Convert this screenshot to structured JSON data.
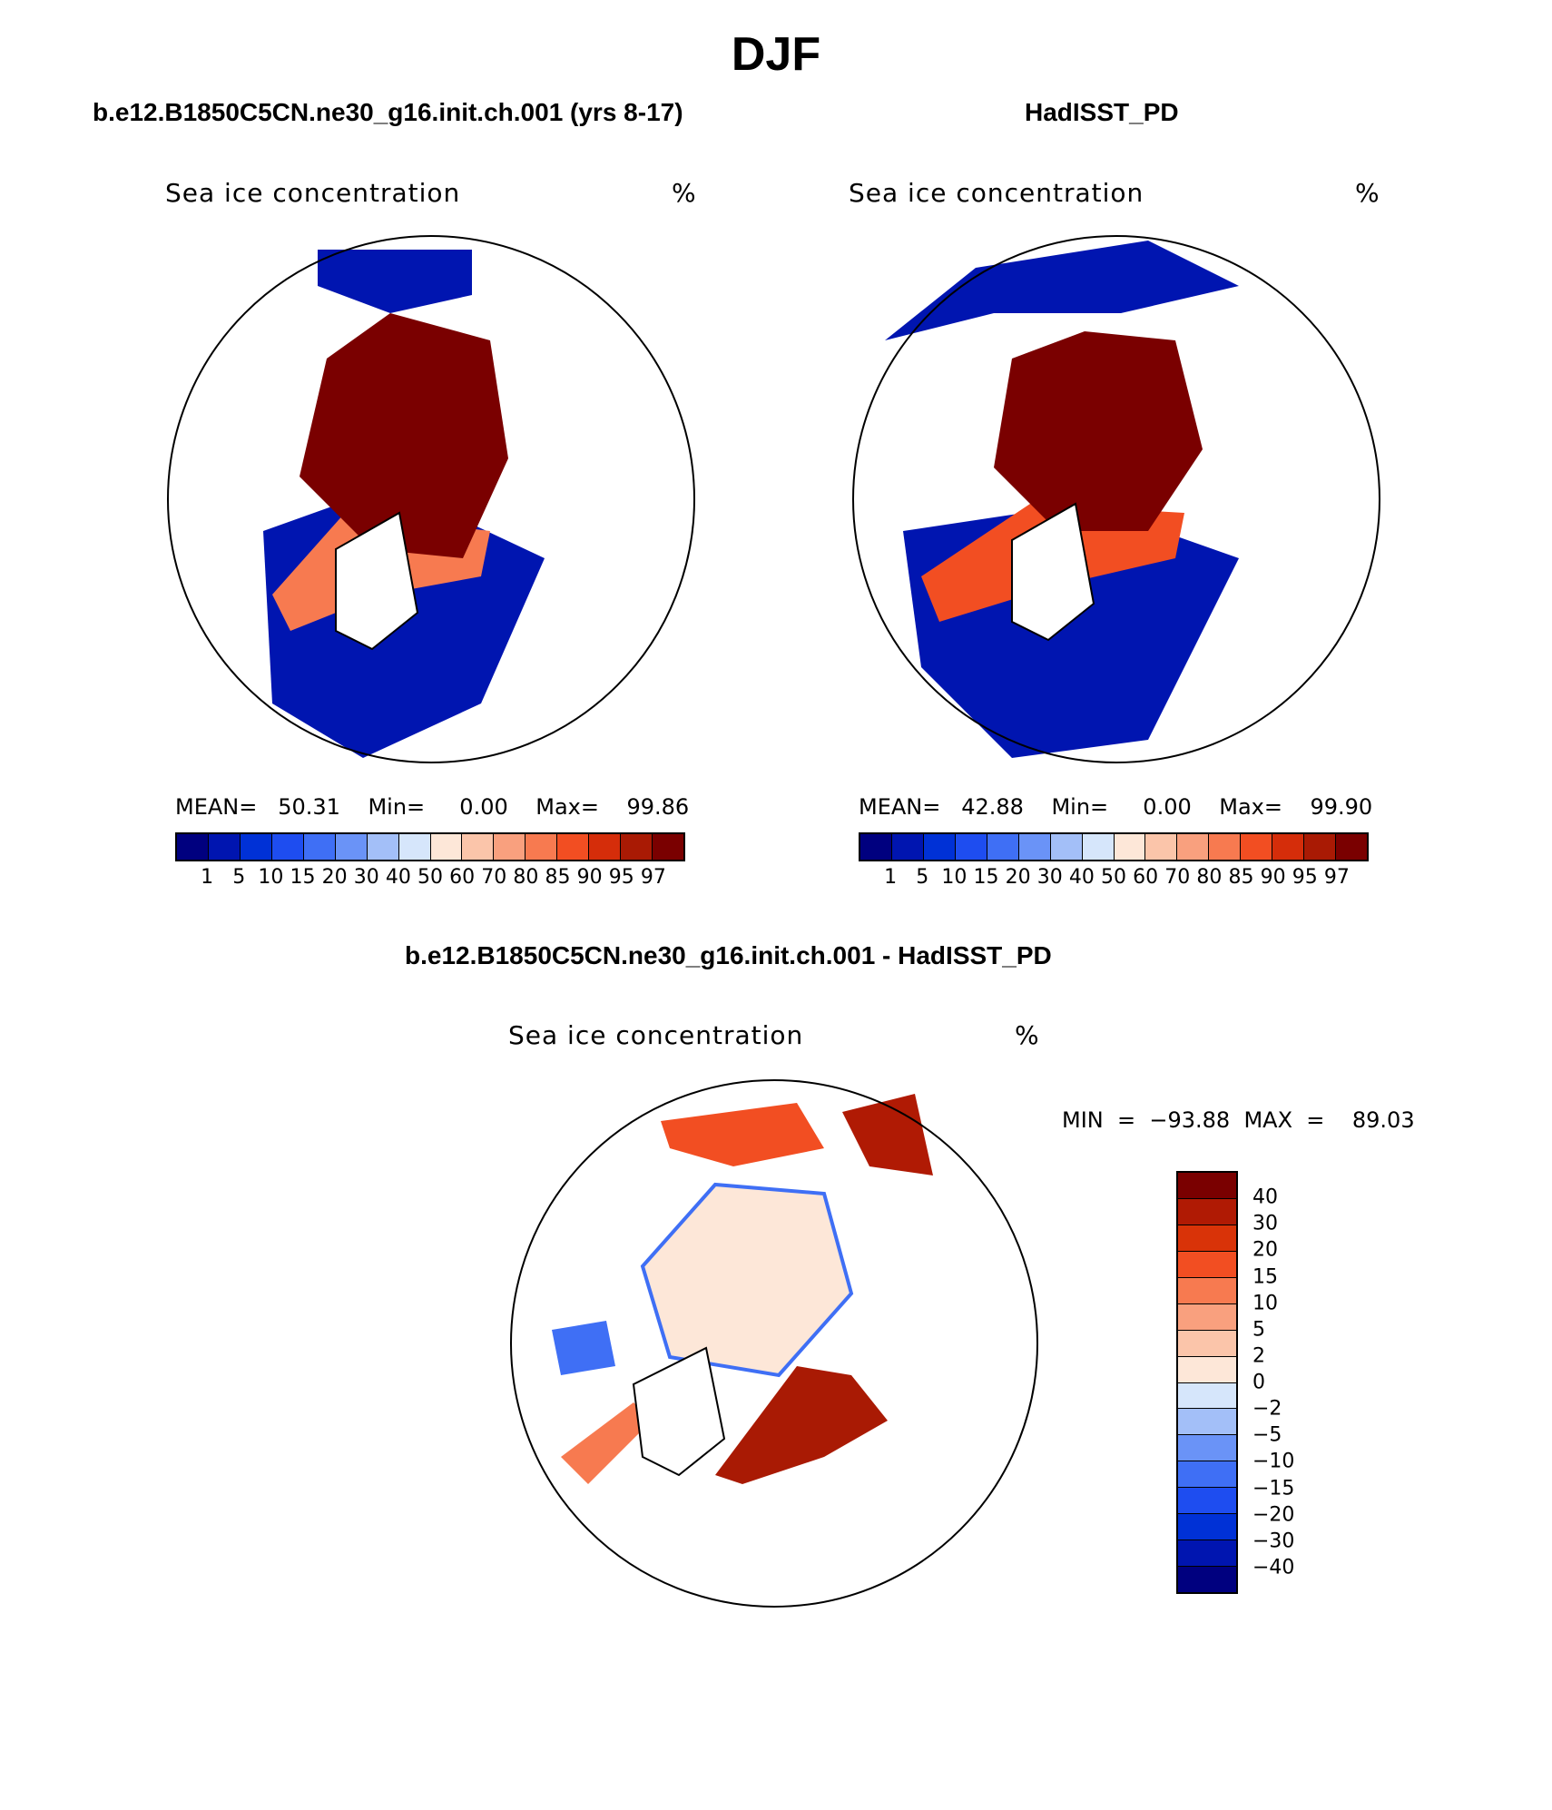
{
  "title": "DJF",
  "panels": {
    "model": {
      "heading": "b.e12.B1850C5CN.ne30_g16.init.ch.001 (yrs 8-17)",
      "variable": "Sea ice concentration",
      "units": "%",
      "stats": "MEAN=   50.31    Min=     0.00    Max=    99.86",
      "mean": 50.31,
      "min": 0.0,
      "max": 99.86
    },
    "obs": {
      "heading": "HadISST_PD",
      "variable": "Sea ice concentration",
      "units": "%",
      "stats": "MEAN=   42.88    Min=     0.00    Max=    99.90",
      "mean": 42.88,
      "min": 0.0,
      "max": 99.9
    },
    "diff": {
      "heading": "b.e12.B1850C5CN.ne30_g16.init.ch.001 - HadISST_PD",
      "variable": "Sea ice concentration",
      "units": "%",
      "stats": "MIN  =  −93.88  MAX  =    89.03",
      "min": -93.88,
      "max": 89.03
    }
  },
  "colorbar_abs": {
    "labels": [
      "1",
      "5",
      "10",
      "15",
      "20",
      "30",
      "40",
      "50",
      "60",
      "70",
      "80",
      "85",
      "90",
      "95",
      "97"
    ],
    "colors": [
      "#00007f",
      "#0015b0",
      "#0031d6",
      "#1e4df0",
      "#3f6ff5",
      "#6a93f7",
      "#a3bff8",
      "#d6e6fb",
      "#fde7d8",
      "#fbc5aa",
      "#f9a07e",
      "#f77a50",
      "#f24e22",
      "#d52d0a",
      "#a91a04",
      "#7a0000"
    ]
  },
  "colorbar_diff": {
    "labels": [
      "40",
      "30",
      "20",
      "15",
      "10",
      "5",
      "2",
      "0",
      "−2",
      "−5",
      "−10",
      "−15",
      "−20",
      "−30",
      "−40"
    ],
    "colors": [
      "#7a0000",
      "#b01a04",
      "#d93308",
      "#f24e22",
      "#f77a50",
      "#f9a07e",
      "#fbc5aa",
      "#fde7d8",
      "#d6e6fb",
      "#a3bff8",
      "#6a93f7",
      "#3f6ff5",
      "#1e4df0",
      "#0031d6",
      "#0015b0",
      "#00007f"
    ]
  }
}
